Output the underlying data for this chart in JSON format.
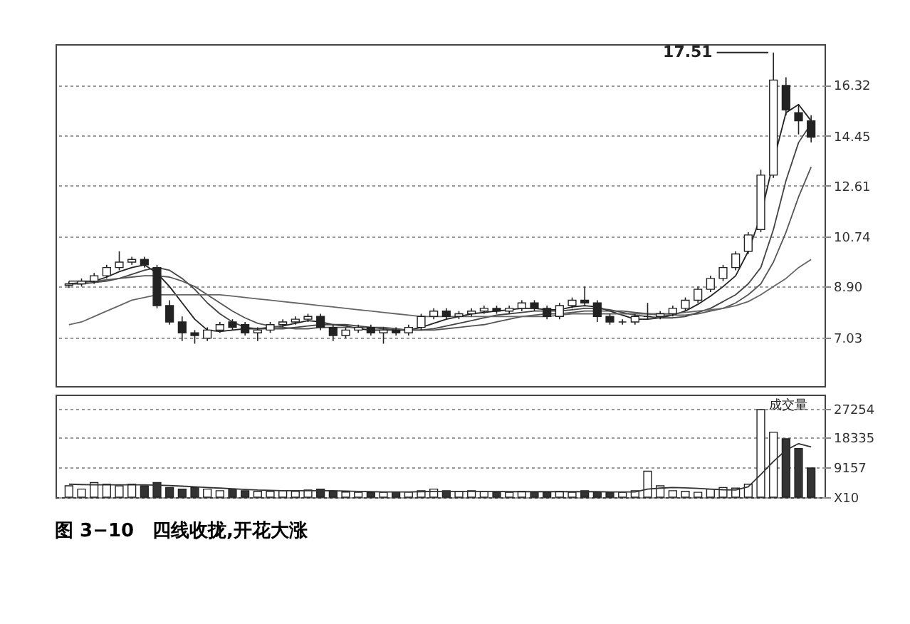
{
  "chart_data": [
    {
      "type": "candlestick",
      "categories": [
        null,
        null,
        null,
        null,
        null,
        null,
        null,
        null,
        null,
        null,
        null,
        null,
        null,
        null,
        null,
        null,
        null,
        null,
        null,
        null,
        null,
        null,
        null,
        null,
        null,
        null,
        null,
        null,
        null,
        null,
        null,
        null,
        null,
        null,
        null,
        null,
        null,
        null,
        null,
        null,
        null,
        null,
        null,
        null,
        null,
        null,
        null,
        null,
        null,
        null,
        null,
        null,
        null,
        null,
        null,
        null,
        null,
        null,
        null,
        null
      ],
      "ohlc": [
        [
          8.95,
          9.1,
          8.85,
          9.0
        ],
        [
          9.0,
          9.2,
          8.9,
          9.1
        ],
        [
          9.1,
          9.4,
          9.0,
          9.3
        ],
        [
          9.3,
          9.7,
          9.2,
          9.6
        ],
        [
          9.6,
          10.2,
          9.5,
          9.8
        ],
        [
          9.8,
          10.0,
          9.7,
          9.9
        ],
        [
          9.9,
          10.0,
          9.6,
          9.7
        ],
        [
          9.6,
          9.7,
          8.1,
          8.2
        ],
        [
          8.2,
          8.4,
          7.5,
          7.6
        ],
        [
          7.6,
          7.8,
          6.9,
          7.2
        ],
        [
          7.2,
          7.3,
          6.8,
          7.1
        ],
        [
          7.0,
          7.4,
          6.9,
          7.3
        ],
        [
          7.3,
          7.6,
          7.2,
          7.5
        ],
        [
          7.6,
          7.7,
          7.3,
          7.4
        ],
        [
          7.5,
          7.6,
          7.1,
          7.2
        ],
        [
          7.2,
          7.4,
          6.9,
          7.3
        ],
        [
          7.3,
          7.6,
          7.2,
          7.5
        ],
        [
          7.5,
          7.7,
          7.4,
          7.6
        ],
        [
          7.6,
          7.8,
          7.5,
          7.7
        ],
        [
          7.7,
          7.9,
          7.6,
          7.8
        ],
        [
          7.8,
          7.9,
          7.3,
          7.4
        ],
        [
          7.4,
          7.5,
          6.9,
          7.1
        ],
        [
          7.1,
          7.4,
          7.0,
          7.3
        ],
        [
          7.3,
          7.5,
          7.2,
          7.4
        ],
        [
          7.4,
          7.5,
          7.1,
          7.2
        ],
        [
          7.2,
          7.4,
          6.8,
          7.3
        ],
        [
          7.3,
          7.4,
          7.1,
          7.2
        ],
        [
          7.2,
          7.5,
          7.1,
          7.4
        ],
        [
          7.4,
          7.9,
          7.3,
          7.8
        ],
        [
          7.8,
          8.1,
          7.7,
          8.0
        ],
        [
          8.0,
          8.1,
          7.7,
          7.8
        ],
        [
          7.8,
          8.0,
          7.7,
          7.9
        ],
        [
          7.9,
          8.1,
          7.8,
          8.0
        ],
        [
          8.0,
          8.2,
          7.9,
          8.1
        ],
        [
          8.1,
          8.2,
          7.9,
          8.0
        ],
        [
          8.0,
          8.2,
          7.9,
          8.1
        ],
        [
          8.1,
          8.4,
          8.0,
          8.3
        ],
        [
          8.3,
          8.4,
          8.0,
          8.1
        ],
        [
          8.1,
          8.2,
          7.7,
          7.8
        ],
        [
          7.8,
          8.3,
          7.7,
          8.2
        ],
        [
          8.2,
          8.5,
          8.1,
          8.4
        ],
        [
          8.4,
          8.9,
          8.2,
          8.3
        ],
        [
          8.3,
          8.4,
          7.6,
          7.8
        ],
        [
          7.8,
          7.9,
          7.5,
          7.6
        ],
        [
          7.6,
          7.7,
          7.5,
          7.6
        ],
        [
          7.6,
          7.9,
          7.5,
          7.8
        ],
        [
          7.8,
          8.3,
          7.7,
          7.8
        ],
        [
          7.8,
          8.0,
          7.7,
          7.9
        ],
        [
          7.9,
          8.2,
          7.8,
          8.1
        ],
        [
          8.1,
          8.5,
          8.0,
          8.4
        ],
        [
          8.4,
          8.9,
          8.3,
          8.8
        ],
        [
          8.8,
          9.3,
          8.7,
          9.2
        ],
        [
          9.2,
          9.7,
          9.1,
          9.6
        ],
        [
          9.6,
          10.2,
          9.5,
          10.1
        ],
        [
          10.2,
          10.9,
          10.1,
          10.8
        ],
        [
          11.0,
          13.2,
          10.9,
          13.0
        ],
        [
          13.0,
          17.51,
          12.9,
          16.5
        ],
        [
          16.3,
          16.6,
          15.2,
          15.4
        ],
        [
          15.3,
          15.6,
          14.5,
          15.0
        ],
        [
          15.0,
          15.2,
          14.2,
          14.4
        ]
      ],
      "series": [
        {
          "type": "line",
          "color": "#222222",
          "values": [
            9.0,
            9.05,
            9.1,
            9.25,
            9.45,
            9.6,
            9.7,
            9.4,
            8.9,
            8.3,
            7.7,
            7.3,
            7.25,
            7.3,
            7.35,
            7.35,
            7.4,
            7.45,
            7.55,
            7.65,
            7.6,
            7.5,
            7.45,
            7.35,
            7.3,
            7.3,
            7.3,
            7.3,
            7.4,
            7.55,
            7.7,
            7.8,
            7.9,
            7.95,
            8.0,
            8.05,
            8.1,
            8.1,
            8.05,
            8.05,
            8.15,
            8.2,
            8.15,
            8.0,
            7.85,
            7.7,
            7.7,
            7.75,
            7.85,
            8.0,
            8.25,
            8.55,
            8.9,
            9.3,
            10.2,
            11.5,
            13.5,
            15.3,
            15.6,
            15.0
          ]
        },
        {
          "type": "line",
          "color": "#444444",
          "values": [
            9.0,
            9.0,
            9.05,
            9.1,
            9.2,
            9.35,
            9.5,
            9.6,
            9.5,
            9.2,
            8.8,
            8.3,
            7.9,
            7.6,
            7.4,
            7.35,
            7.35,
            7.35,
            7.4,
            7.45,
            7.5,
            7.5,
            7.5,
            7.45,
            7.4,
            7.35,
            7.3,
            7.3,
            7.3,
            7.35,
            7.45,
            7.55,
            7.65,
            7.75,
            7.85,
            7.9,
            7.95,
            8.0,
            8.0,
            8.0,
            8.05,
            8.1,
            8.1,
            8.05,
            7.95,
            7.85,
            7.8,
            7.75,
            7.75,
            7.8,
            7.95,
            8.1,
            8.35,
            8.6,
            9.0,
            9.6,
            11.0,
            12.8,
            14.2,
            14.9
          ]
        },
        {
          "type": "line",
          "color": "#555555",
          "values": [
            9.1,
            9.1,
            9.1,
            9.15,
            9.2,
            9.25,
            9.3,
            9.3,
            9.25,
            9.1,
            8.9,
            8.6,
            8.3,
            8.0,
            7.75,
            7.55,
            7.45,
            7.4,
            7.35,
            7.35,
            7.4,
            7.4,
            7.4,
            7.4,
            7.4,
            7.4,
            7.35,
            7.3,
            7.3,
            7.3,
            7.35,
            7.4,
            7.45,
            7.5,
            7.6,
            7.7,
            7.8,
            7.85,
            7.9,
            7.9,
            7.95,
            8.0,
            8.0,
            8.0,
            8.0,
            7.95,
            7.9,
            7.85,
            7.85,
            7.85,
            7.9,
            8.0,
            8.1,
            8.3,
            8.6,
            9.0,
            9.8,
            10.9,
            12.2,
            13.3
          ]
        },
        {
          "type": "line",
          "color": "#666666",
          "values": [
            7.5,
            7.6,
            7.8,
            8.0,
            8.2,
            8.4,
            8.5,
            8.6,
            8.6,
            8.6,
            8.6,
            8.6,
            8.6,
            8.55,
            8.5,
            8.45,
            8.4,
            8.35,
            8.3,
            8.25,
            8.2,
            8.15,
            8.1,
            8.05,
            8.0,
            7.95,
            7.9,
            7.85,
            7.8,
            7.8,
            7.8,
            7.8,
            7.8,
            7.8,
            7.8,
            7.8,
            7.8,
            7.8,
            7.8,
            7.85,
            7.9,
            7.9,
            7.9,
            7.9,
            7.9,
            7.9,
            7.9,
            7.9,
            7.9,
            7.95,
            8.0,
            8.05,
            8.1,
            8.2,
            8.35,
            8.6,
            8.9,
            9.2,
            9.6,
            9.9
          ]
        }
      ],
      "ylim": [
        5.24,
        17.82
      ],
      "yticks": [
        7.03,
        {
          "value": 8.9,
          "label": "8.90"
        },
        10.74,
        12.61,
        14.45,
        16.32
      ],
      "grid": "y",
      "tick_labels": "y",
      "annotations": [
        "17.51"
      ]
    },
    {
      "type": "bar",
      "categories": [
        null,
        null,
        null,
        null,
        null,
        null,
        null,
        null,
        null,
        null,
        null,
        null,
        null,
        null,
        null,
        null,
        null,
        null,
        null,
        null,
        null,
        null,
        null,
        null,
        null,
        null,
        null,
        null,
        null,
        null,
        null,
        null,
        null,
        null,
        null,
        null,
        null,
        null,
        null,
        null,
        null,
        null,
        null,
        null,
        null,
        null,
        null,
        null,
        null,
        null,
        null,
        null,
        null,
        null,
        null,
        null,
        null,
        null,
        null,
        null
      ],
      "series": [
        {
          "type": "bar",
          "values": [
            3500,
            2500,
            4500,
            4000,
            3500,
            4000,
            3500,
            4500,
            3000,
            2500,
            3000,
            2500,
            2000,
            2500,
            2000,
            1800,
            1800,
            2000,
            1800,
            2200,
            2500,
            1800,
            1600,
            1500,
            1400,
            1500,
            1500,
            1600,
            2000,
            2500,
            2000,
            1800,
            2000,
            1800,
            1500,
            1500,
            1800,
            1500,
            1600,
            1800,
            1500,
            2000,
            1500,
            1400,
            1500,
            2000,
            8000,
            3500,
            2000,
            1800,
            1500,
            2500,
            3000,
            2800,
            4000,
            27000,
            20000,
            18000,
            15000,
            9000
          ],
          "colors": [
            "#ffffff",
            "#ffffff",
            "#ffffff",
            "#ffffff",
            "#ffffff",
            "#ffffff",
            "#333333",
            "#333333",
            "#333333",
            "#333333",
            "#333333",
            "#ffffff",
            "#ffffff",
            "#333333",
            "#333333",
            "#ffffff",
            "#ffffff",
            "#ffffff",
            "#ffffff",
            "#ffffff",
            "#333333",
            "#333333",
            "#ffffff",
            "#ffffff",
            "#333333",
            "#ffffff",
            "#333333",
            "#ffffff",
            "#ffffff",
            "#ffffff",
            "#333333",
            "#ffffff",
            "#ffffff",
            "#ffffff",
            "#333333",
            "#ffffff",
            "#ffffff",
            "#333333",
            "#333333",
            "#ffffff",
            "#ffffff",
            "#333333",
            "#333333",
            "#333333",
            "#ffffff",
            "#ffffff",
            "#ffffff",
            "#ffffff",
            "#ffffff",
            "#ffffff",
            "#ffffff",
            "#ffffff",
            "#ffffff",
            "#ffffff",
            "#ffffff",
            "#ffffff",
            "#ffffff",
            "#333333",
            "#333333",
            "#333333"
          ]
        },
        {
          "type": "line",
          "color": "#333333",
          "values": [
            4000,
            3900,
            3800,
            3800,
            3800,
            3800,
            3800,
            3700,
            3600,
            3400,
            3200,
            3000,
            2800,
            2600,
            2400,
            2200,
            2100,
            2000,
            2000,
            2000,
            2000,
            2000,
            1900,
            1800,
            1700,
            1600,
            1600,
            1600,
            1700,
            1800,
            1800,
            1800,
            1800,
            1800,
            1800,
            1700,
            1700,
            1700,
            1700,
            1700,
            1700,
            1700,
            1700,
            1600,
            1600,
            1600,
            2500,
            2800,
            3000,
            2900,
            2700,
            2500,
            2300,
            2200,
            3200,
            7000,
            11000,
            14500,
            16500,
            15500
          ]
        }
      ],
      "ylim": [
        0,
        31600
      ],
      "yticks": [
        {
          "value": 0,
          "label": "X10"
        },
        9157,
        18335,
        27254
      ],
      "grid": "y",
      "tick_labels": "y",
      "annotations": [
        "成交量"
      ],
      "title": "图 3−10　四线收拢,开花大涨"
    }
  ]
}
